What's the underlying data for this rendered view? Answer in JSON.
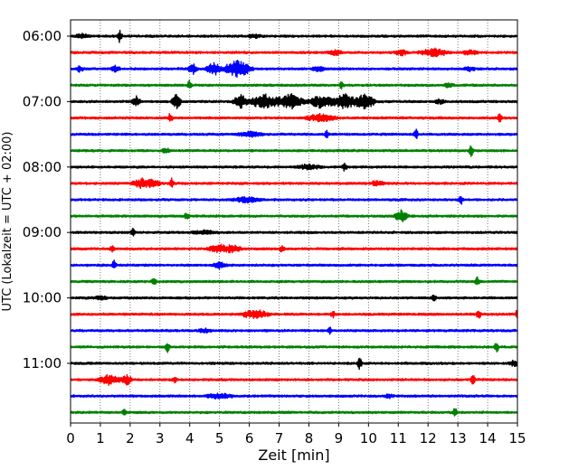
{
  "chart_data": {
    "type": "line",
    "title": "",
    "xlabel": "Zeit  [min]",
    "ylabel": "UTC (Lokalzeit = UTC + 02:00)",
    "xlim": [
      0,
      15
    ],
    "x_ticks": [
      "0",
      "1",
      "2",
      "3",
      "4",
      "5",
      "6",
      "7",
      "8",
      "9",
      "10",
      "11",
      "12",
      "13",
      "14",
      "15"
    ],
    "y_tick_labels": [
      "06:00",
      "07:00",
      "08:00",
      "09:00",
      "10:00",
      "11:00"
    ],
    "grid": "vertical dotted at each minute",
    "trace_interval_min": 15,
    "colors": [
      "#000000",
      "#ff0000",
      "#0000ff",
      "#008000"
    ],
    "series": [
      {
        "start": "06:00",
        "color": "#000000",
        "events": [
          {
            "t": 0.4,
            "amp": 0.25,
            "dur": 0.3
          },
          {
            "t": 1.65,
            "amp": 0.7,
            "dur": 0.1
          },
          {
            "t": 6.2,
            "amp": 0.2,
            "dur": 0.3
          }
        ]
      },
      {
        "start": "06:15",
        "color": "#ff0000",
        "events": [
          {
            "t": 8.9,
            "amp": 0.3,
            "dur": 0.3
          },
          {
            "t": 11.1,
            "amp": 0.3,
            "dur": 0.3
          },
          {
            "t": 12.2,
            "amp": 0.5,
            "dur": 0.6
          },
          {
            "t": 13.4,
            "amp": 0.3,
            "dur": 0.3
          }
        ]
      },
      {
        "start": "06:30",
        "color": "#0000ff",
        "events": [
          {
            "t": 0.3,
            "amp": 0.35,
            "dur": 0.2
          },
          {
            "t": 1.5,
            "amp": 0.35,
            "dur": 0.2
          },
          {
            "t": 4.1,
            "amp": 0.6,
            "dur": 0.2
          },
          {
            "t": 4.8,
            "amp": 0.8,
            "dur": 0.3
          },
          {
            "t": 5.6,
            "amp": 1.0,
            "dur": 0.6
          },
          {
            "t": 8.3,
            "amp": 0.3,
            "dur": 0.3
          },
          {
            "t": 13.4,
            "amp": 0.3,
            "dur": 0.2
          }
        ]
      },
      {
        "start": "06:45",
        "color": "#008000",
        "events": [
          {
            "t": 4.0,
            "amp": 0.6,
            "dur": 0.1
          },
          {
            "t": 9.1,
            "amp": 0.4,
            "dur": 0.1
          },
          {
            "t": 12.7,
            "amp": 0.3,
            "dur": 0.2
          }
        ]
      },
      {
        "start": "07:00",
        "color": "#000000",
        "events": [
          {
            "t": 2.2,
            "amp": 0.6,
            "dur": 0.2
          },
          {
            "t": 3.55,
            "amp": 0.9,
            "dur": 0.2
          },
          {
            "t": 5.7,
            "amp": 0.9,
            "dur": 0.3
          },
          {
            "t": 6.5,
            "amp": 0.9,
            "dur": 0.6
          },
          {
            "t": 7.4,
            "amp": 0.9,
            "dur": 0.6
          },
          {
            "t": 8.4,
            "amp": 0.8,
            "dur": 0.5
          },
          {
            "t": 9.2,
            "amp": 0.9,
            "dur": 0.6
          },
          {
            "t": 9.9,
            "amp": 1.0,
            "dur": 0.4
          },
          {
            "t": 12.4,
            "amp": 0.3,
            "dur": 0.2
          }
        ]
      },
      {
        "start": "07:15",
        "color": "#ff0000",
        "events": [
          {
            "t": 3.35,
            "amp": 0.6,
            "dur": 0.1
          },
          {
            "t": 8.4,
            "amp": 0.5,
            "dur": 0.6
          },
          {
            "t": 14.4,
            "amp": 0.5,
            "dur": 0.1
          }
        ]
      },
      {
        "start": "07:30",
        "color": "#0000ff",
        "events": [
          {
            "t": 6.0,
            "amp": 0.3,
            "dur": 0.5
          },
          {
            "t": 8.6,
            "amp": 0.6,
            "dur": 0.1
          },
          {
            "t": 11.6,
            "amp": 0.6,
            "dur": 0.1
          }
        ]
      },
      {
        "start": "07:45",
        "color": "#008000",
        "events": [
          {
            "t": 3.2,
            "amp": 0.3,
            "dur": 0.2
          },
          {
            "t": 13.45,
            "amp": 0.7,
            "dur": 0.1
          }
        ]
      },
      {
        "start": "08:00",
        "color": "#000000",
        "events": [
          {
            "t": 8.0,
            "amp": 0.3,
            "dur": 0.5
          },
          {
            "t": 9.2,
            "amp": 0.5,
            "dur": 0.1
          }
        ]
      },
      {
        "start": "08:15",
        "color": "#ff0000",
        "events": [
          {
            "t": 2.4,
            "amp": 0.6,
            "dur": 0.4
          },
          {
            "t": 2.8,
            "amp": 0.4,
            "dur": 0.3
          },
          {
            "t": 3.4,
            "amp": 0.6,
            "dur": 0.1
          },
          {
            "t": 10.3,
            "amp": 0.3,
            "dur": 0.3
          }
        ]
      },
      {
        "start": "08:30",
        "color": "#0000ff",
        "events": [
          {
            "t": 5.9,
            "amp": 0.3,
            "dur": 0.6
          },
          {
            "t": 13.1,
            "amp": 0.6,
            "dur": 0.1
          }
        ]
      },
      {
        "start": "08:45",
        "color": "#008000",
        "events": [
          {
            "t": 3.9,
            "amp": 0.5,
            "dur": 0.1
          },
          {
            "t": 11.1,
            "amp": 0.7,
            "dur": 0.3
          }
        ]
      },
      {
        "start": "09:00",
        "color": "#000000",
        "events": [
          {
            "t": 2.1,
            "amp": 0.5,
            "dur": 0.1
          },
          {
            "t": 4.5,
            "amp": 0.2,
            "dur": 0.5
          }
        ]
      },
      {
        "start": "09:15",
        "color": "#ff0000",
        "events": [
          {
            "t": 1.4,
            "amp": 0.4,
            "dur": 0.1
          },
          {
            "t": 5.0,
            "amp": 0.5,
            "dur": 0.5
          },
          {
            "t": 5.5,
            "amp": 0.4,
            "dur": 0.3
          },
          {
            "t": 7.1,
            "amp": 0.5,
            "dur": 0.1
          }
        ]
      },
      {
        "start": "09:30",
        "color": "#0000ff",
        "events": [
          {
            "t": 1.45,
            "amp": 0.6,
            "dur": 0.1
          },
          {
            "t": 5.0,
            "amp": 0.4,
            "dur": 0.3
          }
        ]
      },
      {
        "start": "09:45",
        "color": "#008000",
        "events": [
          {
            "t": 2.8,
            "amp": 0.4,
            "dur": 0.1
          },
          {
            "t": 13.65,
            "amp": 0.6,
            "dur": 0.1
          }
        ]
      },
      {
        "start": "10:00",
        "color": "#000000",
        "events": [
          {
            "t": 1.0,
            "amp": 0.2,
            "dur": 0.3
          },
          {
            "t": 12.2,
            "amp": 0.4,
            "dur": 0.1
          }
        ]
      },
      {
        "start": "10:15",
        "color": "#ff0000",
        "events": [
          {
            "t": 6.2,
            "amp": 0.5,
            "dur": 0.6
          },
          {
            "t": 8.8,
            "amp": 0.4,
            "dur": 0.1
          },
          {
            "t": 13.7,
            "amp": 0.6,
            "dur": 0.1
          },
          {
            "t": 15.0,
            "amp": 0.6,
            "dur": 0.1
          }
        ]
      },
      {
        "start": "10:30",
        "color": "#0000ff",
        "events": [
          {
            "t": 4.5,
            "amp": 0.2,
            "dur": 0.3
          },
          {
            "t": 8.7,
            "amp": 0.5,
            "dur": 0.1
          }
        ]
      },
      {
        "start": "10:45",
        "color": "#008000",
        "events": [
          {
            "t": 3.25,
            "amp": 0.6,
            "dur": 0.1
          },
          {
            "t": 14.3,
            "amp": 0.6,
            "dur": 0.1
          }
        ]
      },
      {
        "start": "11:00",
        "color": "#000000",
        "events": [
          {
            "t": 9.7,
            "amp": 0.7,
            "dur": 0.1
          },
          {
            "t": 14.9,
            "amp": 0.4,
            "dur": 0.2
          }
        ]
      },
      {
        "start": "11:15",
        "color": "#ff0000",
        "events": [
          {
            "t": 1.3,
            "amp": 0.6,
            "dur": 0.5
          },
          {
            "t": 1.9,
            "amp": 0.6,
            "dur": 0.2
          },
          {
            "t": 3.5,
            "amp": 0.3,
            "dur": 0.1
          },
          {
            "t": 13.5,
            "amp": 0.7,
            "dur": 0.1
          }
        ]
      },
      {
        "start": "11:30",
        "color": "#0000ff",
        "events": [
          {
            "t": 5.0,
            "amp": 0.3,
            "dur": 0.6
          },
          {
            "t": 10.7,
            "amp": 0.2,
            "dur": 0.2
          }
        ]
      },
      {
        "start": "11:45",
        "color": "#008000",
        "events": [
          {
            "t": 1.8,
            "amp": 0.4,
            "dur": 0.1
          },
          {
            "t": 12.9,
            "amp": 0.6,
            "dur": 0.1
          }
        ]
      }
    ]
  }
}
